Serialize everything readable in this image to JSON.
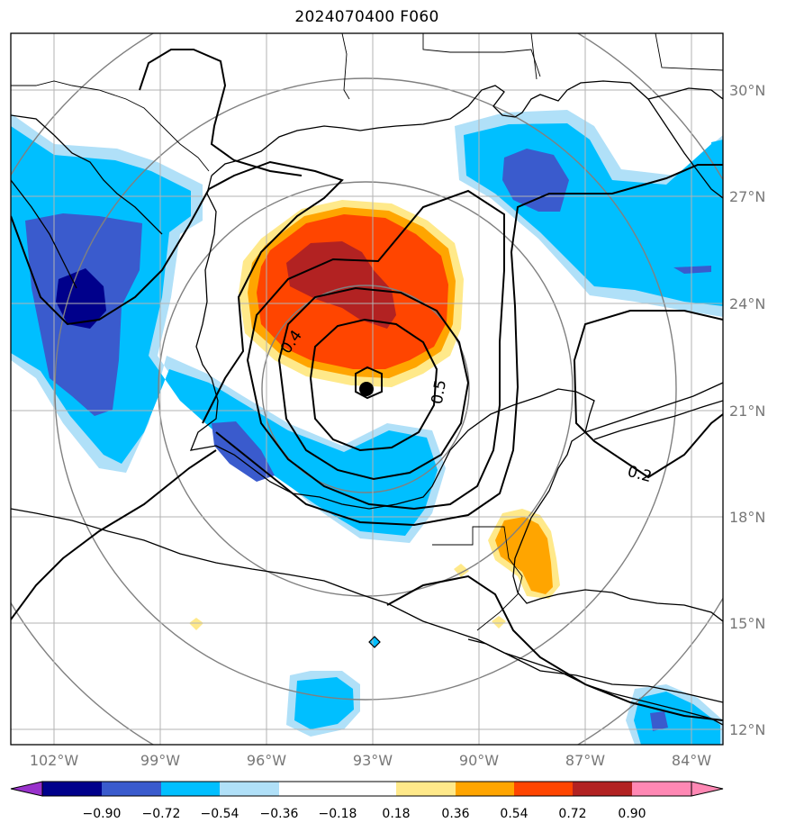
{
  "title": "2024070400 F060",
  "lat_labels": [
    "30°N",
    "27°N",
    "24°N",
    "21°N",
    "18°N",
    "15°N",
    "12°N"
  ],
  "lon_labels": [
    "102°W",
    "99°W",
    "96°W",
    "93°W",
    "90°W",
    "87°W",
    "84°W"
  ],
  "contour_labels": [
    "0.4",
    "0.5",
    "0.2"
  ],
  "colorbar": {
    "tick_labels": [
      "−0.90",
      "−0.72",
      "−0.54",
      "−0.36",
      "−0.18",
      "0.18",
      "0.36",
      "0.54",
      "0.72",
      "0.90"
    ],
    "colors": [
      "#9932cc",
      "#00008b",
      "#3a5bcd",
      "#00bfff",
      "#b0e0f8",
      "#ffffff",
      "#ffe98a",
      "#ffa500",
      "#ff4500",
      "#b22222",
      "#ff88b4"
    ]
  },
  "chart_data": {
    "type": "heatmap",
    "title": "2024070400 F060",
    "lat_range": [
      11.6,
      31.6
    ],
    "lon_range": [
      -103.2,
      -83.2
    ],
    "lat_ticks": [
      30,
      27,
      24,
      21,
      18,
      15,
      12
    ],
    "lon_ticks": [
      -102,
      -99,
      -96,
      -93,
      -90,
      -87,
      -84
    ],
    "storm_center": {
      "lat": 21.6,
      "lon": -92.8
    },
    "contour_values": [
      0.2,
      0.4,
      0.5
    ],
    "colorbar_levels": [
      -0.9,
      -0.72,
      -0.54,
      -0.36,
      -0.18,
      0.18,
      0.36,
      0.54,
      0.72,
      0.9
    ],
    "grid": true,
    "colorbar_position": "bottom"
  }
}
